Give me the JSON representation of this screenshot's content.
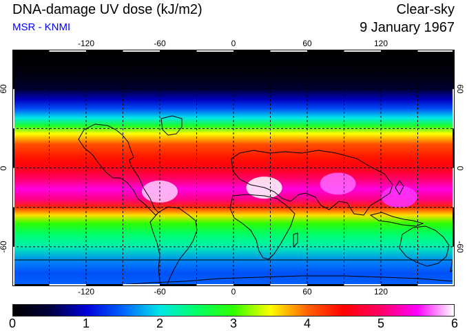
{
  "header": {
    "title": "DNA-damage UV dose (kJ/m2)",
    "subtitle": "MSR - KNMI",
    "condition": "Clear-sky",
    "date": "9 January 1967"
  },
  "map": {
    "lon_ticks": [
      -120,
      -60,
      0,
      60,
      120
    ],
    "lat_ticks": [
      60,
      0,
      -60
    ],
    "dose_range_kj_m2": [
      0,
      6
    ],
    "bands_by_latitude": [
      {
        "lat": 90,
        "dose": 0.0
      },
      {
        "lat": 78,
        "dose": 0.05
      },
      {
        "lat": 68,
        "dose": 0.2
      },
      {
        "lat": 60,
        "dose": 0.45
      },
      {
        "lat": 52,
        "dose": 0.9
      },
      {
        "lat": 45,
        "dose": 1.4
      },
      {
        "lat": 38,
        "dose": 2.0
      },
      {
        "lat": 32,
        "dose": 2.8
      },
      {
        "lat": 26,
        "dose": 3.5
      },
      {
        "lat": 18,
        "dose": 4.1
      },
      {
        "lat": 8,
        "dose": 4.4
      },
      {
        "lat": 0,
        "dose": 4.6
      },
      {
        "lat": -8,
        "dose": 5.0
      },
      {
        "lat": -16,
        "dose": 5.4
      },
      {
        "lat": -24,
        "dose": 5.1
      },
      {
        "lat": -30,
        "dose": 4.3
      },
      {
        "lat": -36,
        "dose": 3.6
      },
      {
        "lat": -42,
        "dose": 3.0
      },
      {
        "lat": -50,
        "dose": 2.5
      },
      {
        "lat": -60,
        "dose": 2.2
      },
      {
        "lat": -72,
        "dose": 1.6
      },
      {
        "lat": -80,
        "dose": 1.4
      },
      {
        "lat": -90,
        "dose": 1.5
      }
    ],
    "hotspots": [
      {
        "name": "southern-africa",
        "lon": 25,
        "lat": -15,
        "dose": 6.0
      },
      {
        "name": "south-america",
        "lon": -60,
        "lat": -18,
        "dose": 5.9
      },
      {
        "name": "indian-ocean",
        "lon": 85,
        "lat": -12,
        "dose": 5.7
      },
      {
        "name": "australia",
        "lon": 135,
        "lat": -22,
        "dose": 5.6
      }
    ]
  },
  "colorbar": {
    "labels": [
      "0",
      "1",
      "2",
      "3",
      "4",
      "5",
      "6"
    ],
    "stops": [
      {
        "v": 0.0,
        "color": "#000000"
      },
      {
        "v": 0.5,
        "color": "#00003c"
      },
      {
        "v": 1.0,
        "color": "#0000dc"
      },
      {
        "v": 1.5,
        "color": "#0064ff"
      },
      {
        "v": 2.0,
        "color": "#00e6e6"
      },
      {
        "v": 2.5,
        "color": "#00ff64"
      },
      {
        "v": 3.0,
        "color": "#30ff00"
      },
      {
        "v": 3.5,
        "color": "#ffff00"
      },
      {
        "v": 4.0,
        "color": "#ff6400"
      },
      {
        "v": 4.5,
        "color": "#ff0000"
      },
      {
        "v": 5.0,
        "color": "#ff0064"
      },
      {
        "v": 5.5,
        "color": "#ff00ff"
      },
      {
        "v": 6.0,
        "color": "#ffffff"
      }
    ]
  }
}
